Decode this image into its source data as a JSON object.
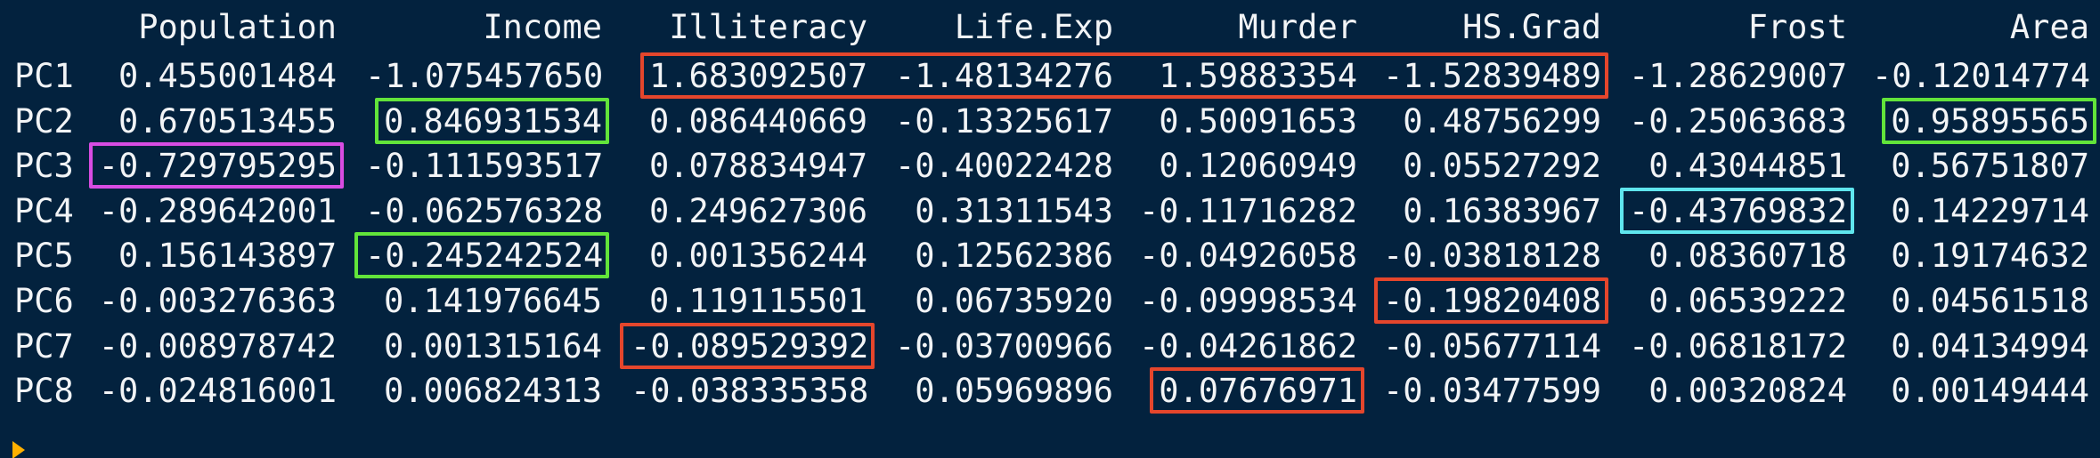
{
  "table": {
    "columns": [
      "Population",
      "Income",
      "Illiteracy",
      "Life.Exp",
      "Murder",
      "HS.Grad",
      "Frost",
      "Area"
    ],
    "rows": [
      {
        "label": "PC1",
        "values": [
          "0.455001484",
          "-1.075457650",
          "1.683092507",
          "-1.48134276",
          "1.59883354",
          "-1.52839489",
          "-1.28629007",
          "-0.12014774"
        ]
      },
      {
        "label": "PC2",
        "values": [
          "0.670513455",
          "0.846931534",
          "0.086440669",
          "-0.13325617",
          "0.50091653",
          "0.48756299",
          "-0.25063683",
          "0.95895565"
        ]
      },
      {
        "label": "PC3",
        "values": [
          "-0.729795295",
          "-0.111593517",
          "0.078834947",
          "-0.40022428",
          "0.12060949",
          "0.05527292",
          "0.43044851",
          "0.56751807"
        ]
      },
      {
        "label": "PC4",
        "values": [
          "-0.289642001",
          "-0.062576328",
          "0.249627306",
          "0.31311543",
          "-0.11716282",
          "0.16383967",
          "-0.43769832",
          "0.14229714"
        ]
      },
      {
        "label": "PC5",
        "values": [
          "0.156143897",
          "-0.245242524",
          "0.001356244",
          "0.12562386",
          "-0.04926058",
          "-0.03818128",
          "0.08360718",
          "0.19174632"
        ]
      },
      {
        "label": "PC6",
        "values": [
          "-0.003276363",
          "0.141976645",
          "0.119115501",
          "0.06735920",
          "-0.09998534",
          "-0.19820408",
          "0.06539222",
          "0.04561518"
        ]
      },
      {
        "label": "PC7",
        "values": [
          "-0.008978742",
          "0.001315164",
          "-0.089529392",
          "-0.03700966",
          "-0.04261862",
          "-0.05677114",
          "-0.06818172",
          "0.04134994"
        ]
      },
      {
        "label": "PC8",
        "values": [
          "-0.024816001",
          "0.006824313",
          "-0.038335358",
          "0.05969896",
          "0.07676971",
          "-0.03477599",
          "0.00320824",
          "0.00149444"
        ]
      }
    ]
  },
  "colors": {
    "background": "#03223e",
    "text": "#f2f4f6",
    "red": "#e5462c",
    "green": "#62e43a",
    "magenta": "#d94ce3",
    "cyan": "#5fe6ee",
    "prompt": "#ffb000"
  },
  "highlights": [
    {
      "row": 0,
      "from_col": 2,
      "to_col": 5,
      "color": "red"
    },
    {
      "row": 1,
      "from_col": 1,
      "to_col": 1,
      "color": "green"
    },
    {
      "row": 1,
      "from_col": 7,
      "to_col": 7,
      "color": "green"
    },
    {
      "row": 2,
      "from_col": 0,
      "to_col": 0,
      "color": "magenta"
    },
    {
      "row": 3,
      "from_col": 6,
      "to_col": 6,
      "color": "cyan"
    },
    {
      "row": 4,
      "from_col": 1,
      "to_col": 1,
      "color": "green"
    },
    {
      "row": 5,
      "from_col": 5,
      "to_col": 5,
      "color": "red"
    },
    {
      "row": 6,
      "from_col": 2,
      "to_col": 2,
      "color": "red"
    },
    {
      "row": 7,
      "from_col": 4,
      "to_col": 4,
      "color": "red"
    }
  ]
}
